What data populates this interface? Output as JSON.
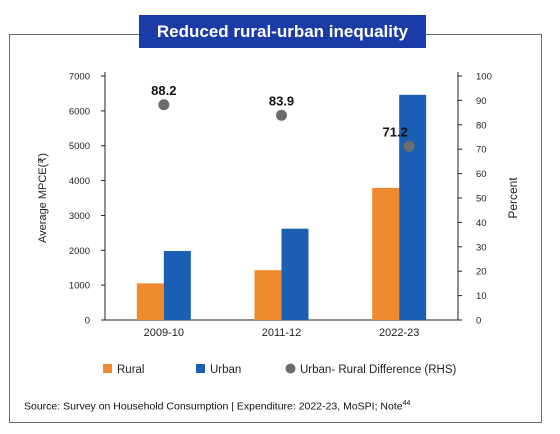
{
  "source_note": {
    "text": "Source: Survey on Household Consumption | Expenditure: 2022-23, MoSPI; Note",
    "sup": "44"
  },
  "chart_data": {
    "type": "bar",
    "title": "Reduced rural-urban inequality",
    "categories": [
      "2009-10",
      "2011-12",
      "2022-23"
    ],
    "series": [
      {
        "name": "Rural",
        "axis": "left",
        "type": "bar",
        "color": "#f08a2e",
        "values": [
          1050,
          1430,
          3790
        ]
      },
      {
        "name": "Urban",
        "axis": "left",
        "type": "bar",
        "color": "#1a5fb4",
        "values": [
          1980,
          2620,
          6460
        ]
      },
      {
        "name": "Urban- Rural Difference (RHS)",
        "axis": "right",
        "type": "scatter",
        "color": "#6b6b6b",
        "values": [
          88.2,
          83.9,
          71.2
        ],
        "labels": [
          "88.2",
          "83.9",
          "71.2"
        ]
      }
    ],
    "ylabel": "Average MPCE(₹)",
    "y2label": "Percent",
    "ylim": [
      0,
      7000
    ],
    "y2lim": [
      0,
      100
    ],
    "yticks": [
      "0",
      "1000",
      "2000",
      "3000",
      "4000",
      "5000",
      "6000",
      "7000"
    ],
    "y2ticks": [
      "0",
      "10",
      "20",
      "30",
      "40",
      "50",
      "60",
      "70",
      "80",
      "90",
      "100"
    ],
    "legend_position": "bottom",
    "grid": false
  }
}
